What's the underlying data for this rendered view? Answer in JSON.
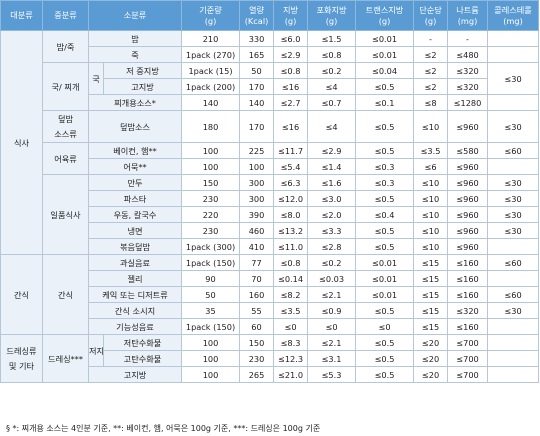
{
  "headers": [
    {
      "name": "대분류",
      "unit": ""
    },
    {
      "name": "중분류",
      "unit": ""
    },
    {
      "name": "소분류",
      "unit": ""
    },
    {
      "name": "기준량",
      "unit": "(g)"
    },
    {
      "name": "열량",
      "unit": "(Kcal)"
    },
    {
      "name": "지방",
      "unit": "(g)"
    },
    {
      "name": "포화지방",
      "unit": "(g)"
    },
    {
      "name": "트랜스지방",
      "unit": "(g)"
    },
    {
      "name": "단순당",
      "unit": "(g)"
    },
    {
      "name": "나트륨",
      "unit": "(mg)"
    },
    {
      "name": "콜레스테롤",
      "unit": "(mg)"
    }
  ],
  "groups": {
    "meal": "식사",
    "bap_juk": "밥/죽",
    "guk_jjigae": "국/ 찌개",
    "guk": "국",
    "deopbap_sauce_1": "덮밥",
    "deopbap_sauce_2": "소스류",
    "fish_meat": "어육류",
    "single_dish": "일품식사",
    "snack_major": "간식",
    "snack_mid": "간식",
    "dressing_major_1": "드레싱류",
    "dressing_major_2": "및 기타",
    "dressing_mid": "드레싱***",
    "low_fat": "저지방"
  },
  "rows": {
    "r1": {
      "sub": "밥",
      "amount": "210",
      "kcal": "330",
      "fat": "≤6.0",
      "sat": "≤1.5",
      "trans": "≤0.01",
      "sugar": "-",
      "na": "-",
      "chol": ""
    },
    "r2": {
      "sub": "죽",
      "amount": "1pack (270)",
      "kcal": "165",
      "fat": "≤2.9",
      "sat": "≤0.8",
      "trans": "≤0.01",
      "sugar": "≤2",
      "na": "≤480",
      "chol": ""
    },
    "r3": {
      "sub": "저 중지방",
      "amount": "1pack (15)",
      "kcal": "50",
      "fat": "≤0.8",
      "sat": "≤0.2",
      "trans": "≤0.04",
      "sugar": "≤2",
      "na": "≤320",
      "chol": ""
    },
    "r4": {
      "sub": "고지방",
      "amount": "1pack (200)",
      "kcal": "170",
      "fat": "≤16",
      "sat": "≤4",
      "trans": "≤0.5",
      "sugar": "≤2",
      "na": "≤320",
      "chol": "≤30"
    },
    "r5": {
      "sub": "찌개용소스*",
      "amount": "140",
      "kcal": "140",
      "fat": "≤2.7",
      "sat": "≤0.7",
      "trans": "≤0.1",
      "sugar": "≤8",
      "na": "≤1280",
      "chol": ""
    },
    "r6": {
      "sub": "덮밥소스",
      "amount": "180",
      "kcal": "170",
      "fat": "≤16",
      "sat": "≤4",
      "trans": "≤0.5",
      "sugar": "≤10",
      "na": "≤960",
      "chol": "≤30"
    },
    "r7": {
      "sub": "베이컨, 햄**",
      "amount": "100",
      "kcal": "225",
      "fat": "≤11.7",
      "sat": "≤2.9",
      "trans": "≤0.5",
      "sugar": "≤3.5",
      "na": "≤580",
      "chol": "≤60"
    },
    "r8": {
      "sub": "어묵**",
      "amount": "100",
      "kcal": "100",
      "fat": "≤5.4",
      "sat": "≤1.4",
      "trans": "≤0.3",
      "sugar": "≤6",
      "na": "≤960",
      "chol": ""
    },
    "r9": {
      "sub": "만두",
      "amount": "150",
      "kcal": "300",
      "fat": "≤6.3",
      "sat": "≤1.6",
      "trans": "≤0.3",
      "sugar": "≤10",
      "na": "≤960",
      "chol": "≤30"
    },
    "r10": {
      "sub": "파스타",
      "amount": "230",
      "kcal": "300",
      "fat": "≤12.0",
      "sat": "≤3.0",
      "trans": "≤0.5",
      "sugar": "≤10",
      "na": "≤960",
      "chol": "≤30"
    },
    "r11": {
      "sub": "우동, 칼국수",
      "amount": "220",
      "kcal": "390",
      "fat": "≤8.0",
      "sat": "≤2.0",
      "trans": "≤0.4",
      "sugar": "≤10",
      "na": "≤960",
      "chol": "≤30"
    },
    "r12": {
      "sub": "냉면",
      "amount": "230",
      "kcal": "460",
      "fat": "≤13.2",
      "sat": "≤3.3",
      "trans": "≤0.5",
      "sugar": "≤10",
      "na": "≤960",
      "chol": "≤30"
    },
    "r13": {
      "sub": "볶음덮밥",
      "amount": "1pack (300)",
      "kcal": "410",
      "fat": "≤11.0",
      "sat": "≤2.8",
      "trans": "≤0.5",
      "sugar": "≤10",
      "na": "≤960",
      "chol": ""
    },
    "r14": {
      "sub": "과실음료",
      "amount": "1pack (150)",
      "kcal": "77",
      "fat": "≤0.8",
      "sat": "≤0.2",
      "trans": "≤0.01",
      "sugar": "≤15",
      "na": "≤160",
      "chol": "≤60"
    },
    "r15": {
      "sub": "젤리",
      "amount": "90",
      "kcal": "70",
      "fat": "≤0.14",
      "sat": "≤0.03",
      "trans": "≤0.01",
      "sugar": "≤15",
      "na": "≤160",
      "chol": ""
    },
    "r16": {
      "sub": "케익 또는 디저트류",
      "amount": "50",
      "kcal": "160",
      "fat": "≤8.2",
      "sat": "≤2.1",
      "trans": "≤0.01",
      "sugar": "≤15",
      "na": "≤160",
      "chol": "≤60"
    },
    "r17": {
      "sub": "간식 소시지",
      "amount": "35",
      "kcal": "55",
      "fat": "≤3.5",
      "sat": "≤0.9",
      "trans": "≤0.5",
      "sugar": "≤15",
      "na": "≤320",
      "chol": "≤30"
    },
    "r18": {
      "sub": "기능성음료",
      "amount": "1pack (150)",
      "kcal": "60",
      "fat": "≤0",
      "sat": "≤0",
      "trans": "≤0",
      "sugar": "≤15",
      "na": "≤160",
      "chol": ""
    },
    "r19": {
      "sub": "저탄수화물",
      "amount": "100",
      "kcal": "150",
      "fat": "≤8.3",
      "sat": "≤2.1",
      "trans": "≤0.5",
      "sugar": "≤20",
      "na": "≤700",
      "chol": ""
    },
    "r20": {
      "sub": "고탄수화물",
      "amount": "100",
      "kcal": "230",
      "fat": "≤12.3",
      "sat": "≤3.1",
      "trans": "≤0.5",
      "sugar": "≤20",
      "na": "≤700",
      "chol": ""
    },
    "r21": {
      "sub": "고지방",
      "amount": "100",
      "kcal": "265",
      "fat": "≤21.0",
      "sat": "≤5.3",
      "trans": "≤0.5",
      "sugar": "≤20",
      "na": "≤700",
      "chol": ""
    }
  },
  "footnote": "§ *: 찌개용 소스는 4인분 기준, **: 베이컨, 햄, 어묵은 100g 기준, ***: 드레싱은 100g 기준"
}
